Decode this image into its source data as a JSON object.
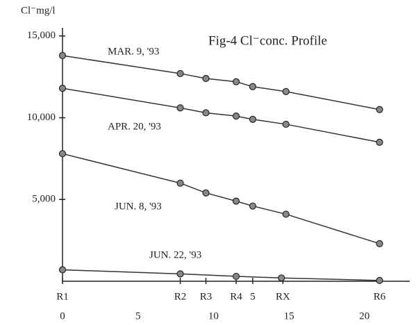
{
  "chart_data": {
    "type": "line",
    "title": "Fig-4 Cl⁻conc. Profile",
    "y_label": "Cl⁻mg/l",
    "xlim": [
      0,
      23
    ],
    "xticks": [
      0,
      5,
      10,
      15,
      20
    ],
    "ylim": [
      0,
      15500
    ],
    "yticks": [
      {
        "value": 5000,
        "label": "5,000"
      },
      {
        "value": 10000,
        "label": "10,000"
      },
      {
        "value": 15000,
        "label": "15,000"
      }
    ],
    "stations": [
      {
        "label": "R1",
        "x": 0
      },
      {
        "label": "R2",
        "x": 7.8
      },
      {
        "label": "R3",
        "x": 9.5
      },
      {
        "label": "R4",
        "x": 11.5
      },
      {
        "label": "5",
        "x": 12.6
      },
      {
        "label": "RX",
        "x": 14.6
      },
      {
        "label": "R6",
        "x": 21
      }
    ],
    "color": "#333333",
    "series": [
      {
        "name": "MAR. 9, '93",
        "x": [
          0,
          7.8,
          9.5,
          11.5,
          12.6,
          14.8,
          21
        ],
        "values": [
          13800,
          12700,
          12400,
          12200,
          11900,
          11600,
          10500
        ]
      },
      {
        "name": "APR. 20, '93",
        "x": [
          0,
          7.8,
          9.5,
          11.5,
          12.6,
          14.8,
          21
        ],
        "values": [
          11800,
          10600,
          10300,
          10100,
          9900,
          9600,
          8500
        ]
      },
      {
        "name": "JUN. 8, '93",
        "x": [
          0,
          7.8,
          9.5,
          11.5,
          12.6,
          14.8,
          21
        ],
        "values": [
          7800,
          6000,
          5400,
          4900,
          4600,
          4100,
          2300
        ]
      },
      {
        "name": "JUN. 22, '93",
        "x": [
          0,
          7.8,
          11.5,
          14.5,
          21
        ],
        "values": [
          700,
          450,
          300,
          200,
          50
        ]
      }
    ]
  }
}
